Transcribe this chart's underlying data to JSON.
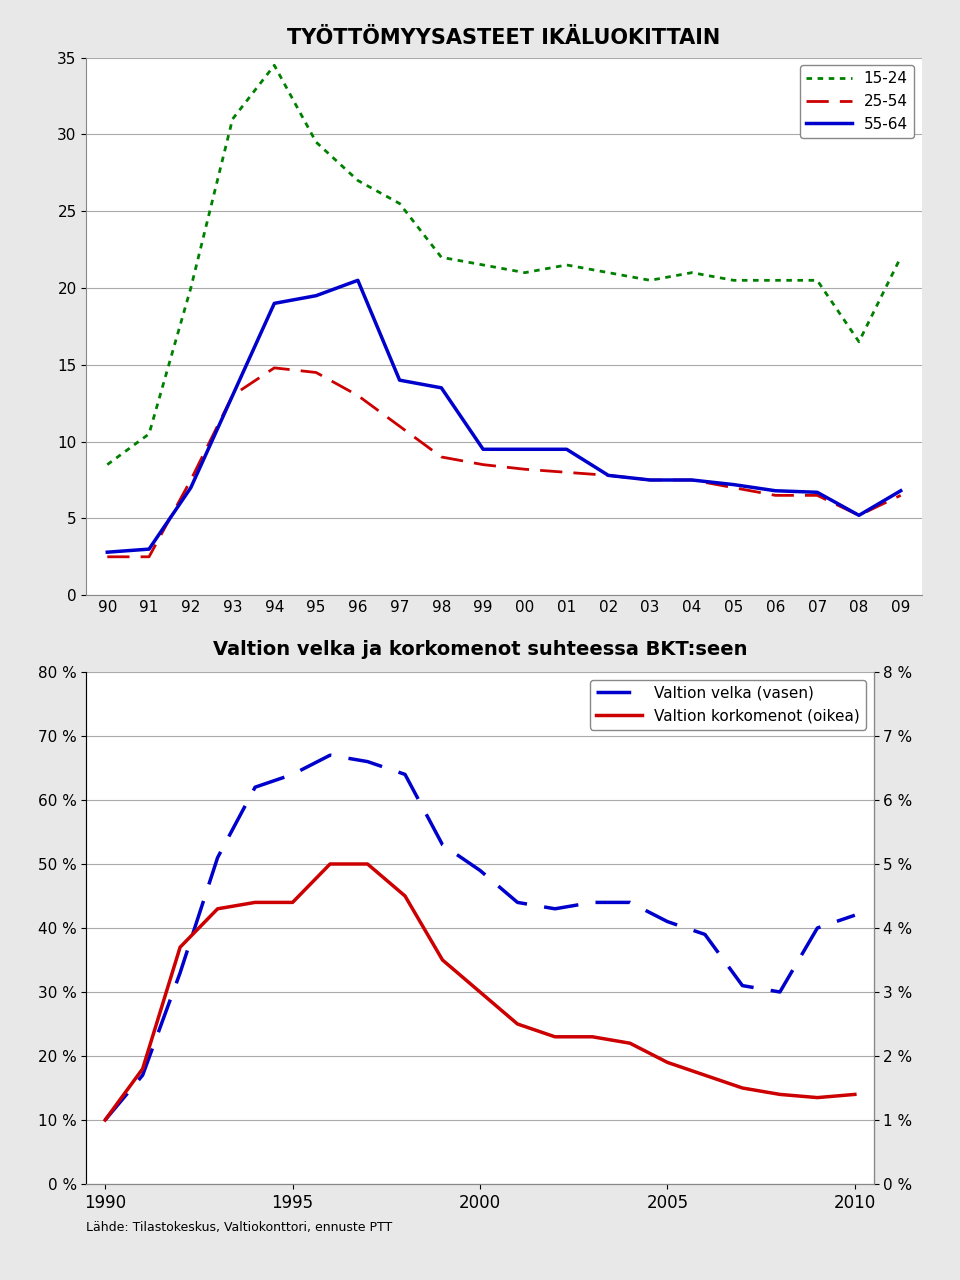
{
  "chart1": {
    "title": "TYÖTTÖMYYSASTEET IKÄLUOKITTAIN",
    "x_indices": [
      0,
      1,
      2,
      3,
      4,
      5,
      6,
      7,
      8,
      9,
      10,
      11,
      12,
      13,
      14,
      15,
      16,
      17,
      18,
      19
    ],
    "x_labels": [
      "90",
      "91",
      "92",
      "93",
      "94",
      "95",
      "96",
      "97",
      "98",
      "99",
      "00",
      "01",
      "02",
      "03",
      "04",
      "05",
      "06",
      "07",
      "08",
      "09"
    ],
    "y1524": [
      8.5,
      10.5,
      20.0,
      31.0,
      34.5,
      29.5,
      27.0,
      25.5,
      22.0,
      21.5,
      21.0,
      21.5,
      21.0,
      20.5,
      21.0,
      20.5,
      20.5,
      20.5,
      16.5,
      22.0
    ],
    "y2554": [
      2.5,
      2.5,
      7.5,
      13.0,
      14.8,
      14.5,
      13.0,
      11.0,
      9.0,
      8.5,
      8.2,
      8.0,
      7.8,
      7.5,
      7.5,
      7.0,
      6.5,
      6.5,
      5.2,
      6.5
    ],
    "y5564": [
      2.8,
      3.0,
      7.0,
      13.0,
      19.0,
      19.5,
      20.5,
      14.0,
      13.5,
      9.5,
      9.5,
      9.5,
      7.8,
      7.5,
      7.5,
      7.2,
      6.8,
      6.7,
      5.2,
      6.8
    ],
    "color1524": "#008000",
    "color2554": "#cc0000",
    "color5564": "#0000cc",
    "ylim": [
      0,
      35
    ],
    "yticks": [
      0,
      5,
      10,
      15,
      20,
      25,
      30,
      35
    ],
    "legend_labels": [
      "15-24",
      "25-54",
      "55-64"
    ]
  },
  "chart2": {
    "title": "Valtion velka ja korkomenot suhteessa BKT:seen",
    "years": [
      1990,
      1991,
      1992,
      1993,
      1994,
      1995,
      1996,
      1997,
      1998,
      1999,
      2000,
      2001,
      2002,
      2003,
      2004,
      2005,
      2006,
      2007,
      2008,
      2009,
      2010
    ],
    "velka": [
      10,
      17,
      33,
      51,
      62,
      64,
      67,
      66,
      64,
      53,
      49,
      44,
      43,
      44,
      44,
      41,
      39,
      31,
      30,
      40,
      42
    ],
    "korko": [
      1.0,
      1.8,
      3.7,
      4.3,
      4.4,
      4.4,
      5.0,
      5.0,
      4.5,
      3.5,
      3.0,
      2.5,
      2.3,
      2.3,
      2.2,
      1.9,
      1.7,
      1.5,
      1.4,
      1.35,
      1.4
    ],
    "color_velka": "#0000cc",
    "color_korko": "#cc0000",
    "ylim_left": [
      0,
      80
    ],
    "ylim_right": [
      0,
      8
    ],
    "yticks_left": [
      0,
      10,
      20,
      30,
      40,
      50,
      60,
      70,
      80
    ],
    "yticks_right": [
      0,
      1,
      2,
      3,
      4,
      5,
      6,
      7,
      8
    ],
    "xticks": [
      1990,
      1995,
      2000,
      2005,
      2010
    ],
    "xtick_labels": [
      "1990",
      "1995",
      "2000",
      "2005",
      "2010"
    ],
    "legend_velka": "Valtion velka (vasen)",
    "legend_korko": "Valtion korkomenot (oikea)",
    "source": "Lähde: Tilastokeskus, Valtiokonttori, ennuste PTT"
  },
  "bg_color": "#e8e8e8",
  "plot_bg": "#ffffff"
}
